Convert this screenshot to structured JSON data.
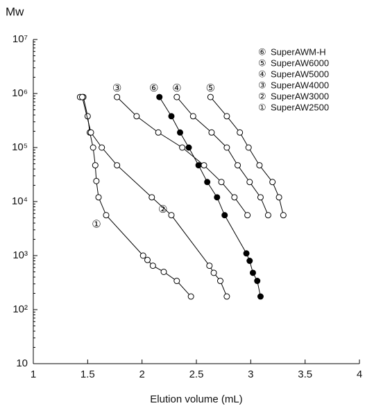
{
  "chart_data": {
    "type": "line",
    "y_label": "Mw",
    "x_label": "Elution volume (mL)",
    "log_y": true,
    "xlim": [
      1,
      4
    ],
    "xticks": [
      1,
      1.5,
      2,
      2.5,
      3,
      3.5,
      4
    ],
    "ylim": [
      10,
      10000000
    ],
    "yticks": [
      {
        "value": 10,
        "label": "10"
      },
      {
        "value": 100,
        "label": "10²"
      },
      {
        "value": 1000,
        "label": "10³"
      },
      {
        "value": 10000,
        "label": "10⁴"
      },
      {
        "value": 100000,
        "label": "10⁵"
      },
      {
        "value": 1000000,
        "label": "10⁶"
      },
      {
        "value": 10000000,
        "label": "10⁷"
      }
    ],
    "legend_position": "upper right",
    "series": [
      {
        "name": "SuperAW2500",
        "label": "①",
        "color": "#000000",
        "marker_fill": "#ffffff",
        "x": [
          1.43,
          1.46,
          1.5,
          1.52,
          1.55,
          1.57,
          1.58,
          1.6,
          1.67,
          2.01,
          2.05,
          2.1,
          2.2,
          2.32,
          2.45
        ],
        "values": [
          860000,
          860000,
          380000,
          190000,
          100000,
          47000,
          24000,
          12000,
          5600,
          1000,
          830,
          650,
          500,
          340,
          175
        ]
      },
      {
        "name": "SuperAW3000",
        "label": "②",
        "color": "#000000",
        "marker_fill": "#ffffff",
        "x": [
          1.45,
          1.53,
          1.63,
          1.77,
          2.09,
          2.27,
          2.62,
          2.66,
          2.72,
          2.78
        ],
        "values": [
          860000,
          190000,
          100000,
          47000,
          12000,
          5600,
          650,
          480,
          340,
          175
        ]
      },
      {
        "name": "SuperAW4000",
        "label": "③",
        "color": "#000000",
        "marker_fill": "#ffffff",
        "x": [
          1.77,
          1.95,
          2.15,
          2.37,
          2.57,
          2.73,
          2.85,
          2.97
        ],
        "values": [
          860000,
          380000,
          190000,
          100000,
          47000,
          23000,
          12000,
          5600
        ]
      },
      {
        "name": "SuperAW5000",
        "label": "④",
        "color": "#000000",
        "marker_fill": "#ffffff",
        "x": [
          2.32,
          2.47,
          2.64,
          2.78,
          2.88,
          2.99,
          3.09,
          3.16
        ],
        "values": [
          860000,
          380000,
          190000,
          100000,
          47000,
          23000,
          12000,
          5600
        ]
      },
      {
        "name": "SuperAW6000",
        "label": "⑤",
        "color": "#000000",
        "marker_fill": "#ffffff",
        "x": [
          2.63,
          2.78,
          2.9,
          2.98,
          3.08,
          3.2,
          3.26,
          3.3
        ],
        "values": [
          860000,
          380000,
          190000,
          100000,
          47000,
          23000,
          12000,
          5600
        ]
      },
      {
        "name": "SuperAWM-H",
        "label": "⑥",
        "color": "#000000",
        "marker_fill": "#000000",
        "x": [
          2.16,
          2.27,
          2.35,
          2.43,
          2.52,
          2.6,
          2.69,
          2.76,
          2.96,
          2.99,
          3.02,
          3.06,
          3.09
        ],
        "values": [
          860000,
          380000,
          190000,
          100000,
          47000,
          23000,
          12000,
          5600,
          1100,
          800,
          480,
          340,
          175
        ]
      }
    ]
  }
}
